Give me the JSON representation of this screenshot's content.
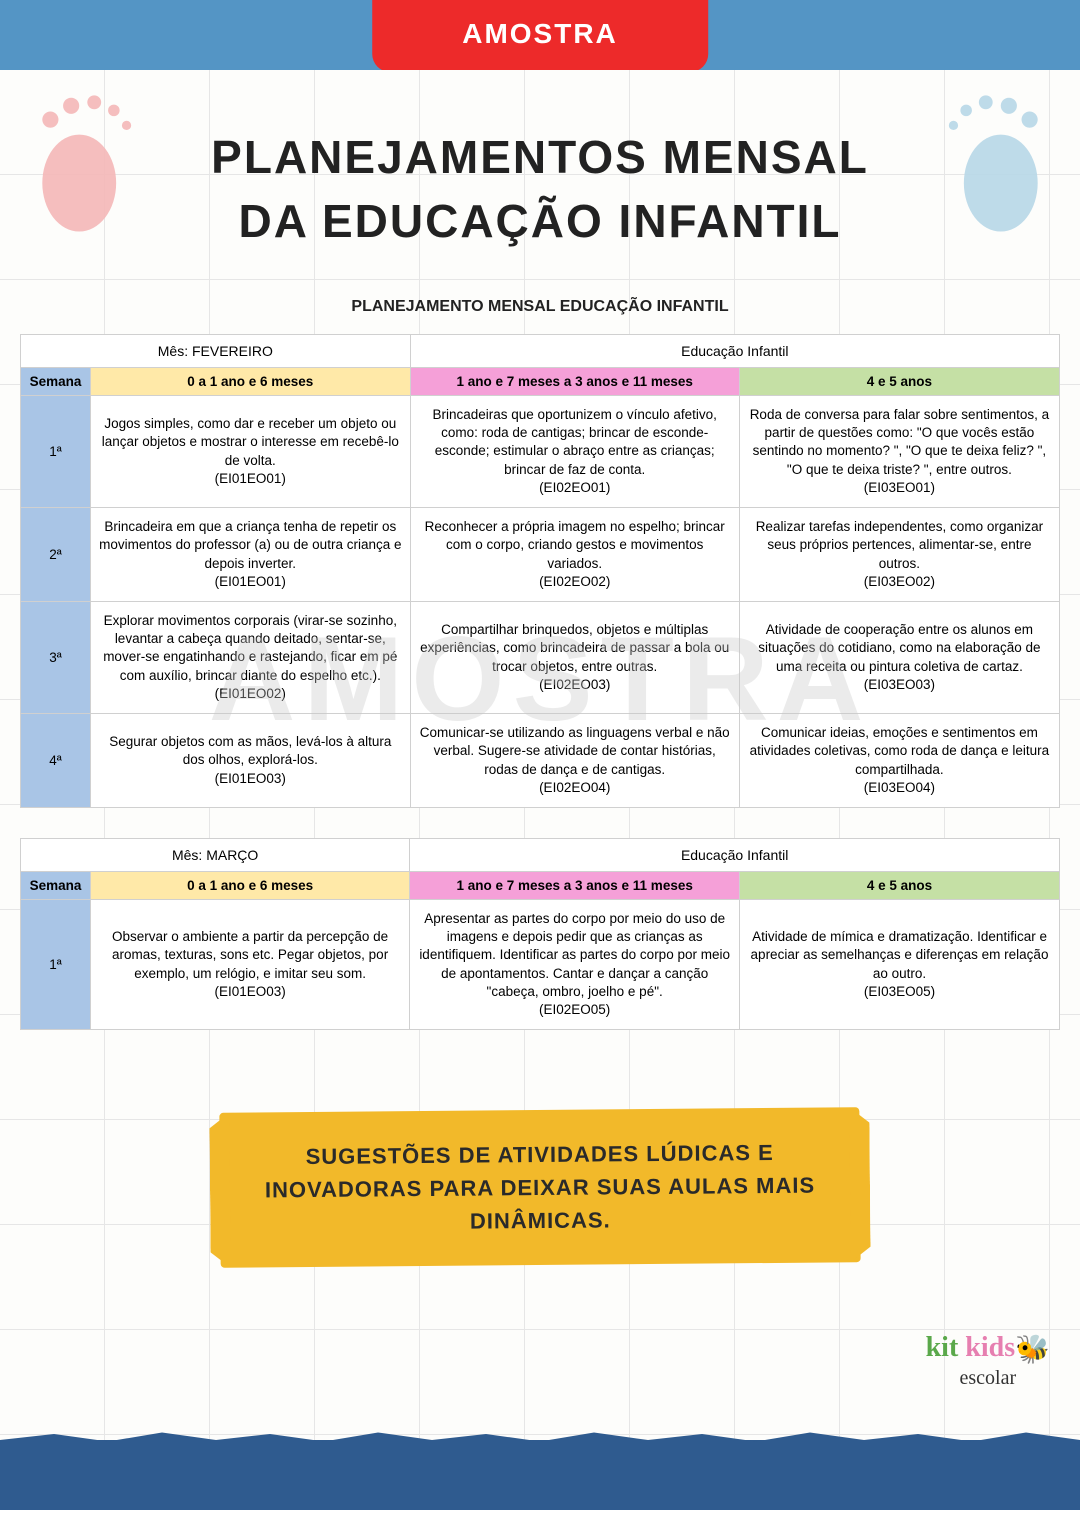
{
  "tab_label": "AMOSTRA",
  "title_line1": "PLANEJAMENTOS MENSAL",
  "title_line2": "DA EDUCAÇÃO INFANTIL",
  "table_title": "PLANEJAMENTO MENSAL EDUCAÇÃO INFANTIL",
  "watermark": "AMOSTRA",
  "edu_label": "Educação Infantil",
  "headers": {
    "semana": "Semana",
    "age0": "0 a 1 ano e 6 meses",
    "age1": "1 ano e 7 meses a 3 anos e 11 meses",
    "age2": "4 e 5 anos"
  },
  "colors": {
    "top_bar": "#5495c5",
    "tab": "#ed2a2a",
    "semana_bg": "#a9c5e6",
    "age0_bg": "#ffe9a8",
    "age1_bg": "#f5a0d8",
    "age2_bg": "#c5e0a5",
    "banner_bg": "#f2b92a",
    "wave": "#2f5b8f",
    "foot_left": "#f5b8b8",
    "foot_right": "#b8d8e8"
  },
  "months": [
    {
      "mes_label": "Mês: FEVEREIRO",
      "weeks": [
        {
          "n": "1ª",
          "c0": "Jogos simples, como dar e receber um objeto ou lançar objetos e mostrar o interesse em recebê-lo de volta.\n(EI01EO01)",
          "c1": "Brincadeiras que oportunizem o vínculo afetivo, como: roda de cantigas; brincar de esconde-esconde; estimular o abraço entre as crianças; brincar de faz de conta.\n(EI02EO01)",
          "c2": "Roda de conversa para falar sobre sentimentos, a partir de questões como: \"O que vocês estão sentindo no momento? \", \"O que te deixa feliz? \", \"O que te deixa triste? \", entre outros.\n(EI03EO01)"
        },
        {
          "n": "2ª",
          "c0": "Brincadeira em que a criança tenha de repetir os movimentos do professor (a) ou de outra criança e depois inverter.\n(EI01EO01)",
          "c1": "Reconhecer a própria imagem no espelho; brincar com o corpo, criando gestos e movimentos variados.\n(EI02EO02)",
          "c2": "Realizar tarefas independentes, como organizar seus próprios pertences, alimentar-se, entre outros.\n(EI03EO02)"
        },
        {
          "n": "3ª",
          "c0": "Explorar movimentos corporais (virar-se sozinho, levantar a cabeça quando deitado, sentar-se, mover-se engatinhando e rastejando, ficar em pé com auxílio, brincar diante do espelho etc.).\n(EI01EO02)",
          "c1": "Compartilhar brinquedos, objetos e múltiplas experiências, como brincadeira de passar a bola ou trocar objetos, entre outras.\n(EI02EO03)",
          "c2": "Atividade de cooperação entre os alunos em situações do cotidiano, como na elaboração de uma receita ou pintura coletiva de cartaz.\n(EI03EO03)"
        },
        {
          "n": "4ª",
          "c0": "Segurar objetos com as mãos, levá-los à altura dos olhos, explorá-los.\n(EI01EO03)",
          "c1": "Comunicar-se utilizando as linguagens verbal e não verbal. Sugere-se atividade de contar histórias, rodas de dança e de cantigas.\n(EI02EO04)",
          "c2": "Comunicar ideias, emoções e sentimentos em atividades coletivas, como roda de dança e leitura compartilhada.\n(EI03EO04)"
        }
      ]
    },
    {
      "mes_label": "Mês: MARÇO",
      "weeks": [
        {
          "n": "1ª",
          "c0": "Observar o ambiente a partir da percepção de aromas, texturas, sons etc. Pegar objetos, por exemplo, um relógio, e imitar seu som.\n(EI01EO03)",
          "c1": "Apresentar as partes do corpo por meio do uso de imagens e depois pedir que as crianças as identifiquem. Identificar as partes do corpo por meio de apontamentos. Cantar e dançar a canção \"cabeça, ombro, joelho e pé\".\n(EI02EO05)",
          "c2": "Atividade de mímica e dramatização. Identificar e apreciar as semelhanças e diferenças em relação ao outro.\n(EI03EO05)"
        }
      ]
    }
  ],
  "banner_text": "SUGESTÕES DE ATIVIDADES LÚDICAS E INOVADORAS PARA DEIXAR SUAS AULAS MAIS DINÂMICAS.",
  "logo": {
    "line1a": "kit ",
    "line1b": "kids",
    "line2": "escolar",
    "bee": "🐝"
  }
}
